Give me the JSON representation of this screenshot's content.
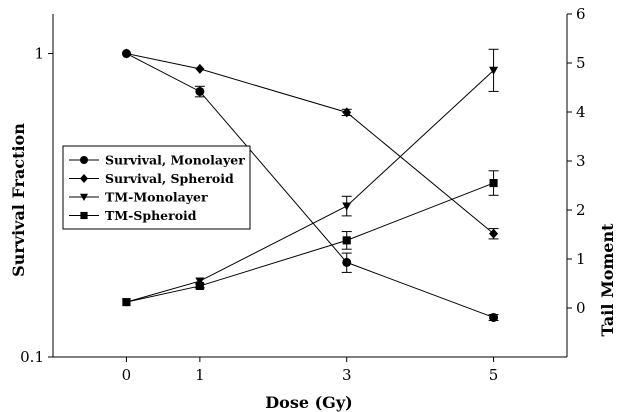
{
  "chart_data": {
    "type": "line",
    "xlabel": "Dose (Gy)",
    "ylabel": "Survival Fraction",
    "y2label": "Tail Moment",
    "x_ticks": [
      0,
      1,
      3,
      5
    ],
    "y_ticks": [
      0.1,
      1
    ],
    "y_scale": "log",
    "ylim": [
      0.1,
      1.35
    ],
    "y2_ticks": [
      0,
      1,
      2,
      3,
      4,
      5,
      6
    ],
    "y2lim": [
      -1,
      6
    ],
    "xlim": [
      -1,
      6
    ],
    "grid": false,
    "legend_position": "center-left",
    "series": [
      {
        "name": "Survival, Monolayer",
        "axis": "left",
        "marker": "circle",
        "x": [
          0,
          1,
          3,
          5
        ],
        "y": [
          1.0,
          0.75,
          0.205,
          0.135
        ],
        "err": [
          0,
          0.03,
          0.015,
          0.003
        ]
      },
      {
        "name": "Survival, Spheroid",
        "axis": "left",
        "marker": "diamond",
        "x": [
          0,
          1,
          3,
          5
        ],
        "y": [
          1.0,
          0.89,
          0.64,
          0.255
        ],
        "err": [
          0,
          0,
          0.015,
          0.01
        ]
      },
      {
        "name": "TM-Monolayer",
        "axis": "right",
        "marker": "triangle-down",
        "x": [
          0,
          1,
          3,
          5
        ],
        "y": [
          0.12,
          0.55,
          2.08,
          4.85
        ],
        "err": [
          0,
          0,
          0.2,
          0.43
        ]
      },
      {
        "name": "TM-Spheroid",
        "axis": "right",
        "marker": "square",
        "x": [
          0,
          1,
          3,
          5
        ],
        "y": [
          0.12,
          0.45,
          1.38,
          2.55
        ],
        "err": [
          0,
          0.04,
          0.18,
          0.25
        ]
      }
    ]
  }
}
